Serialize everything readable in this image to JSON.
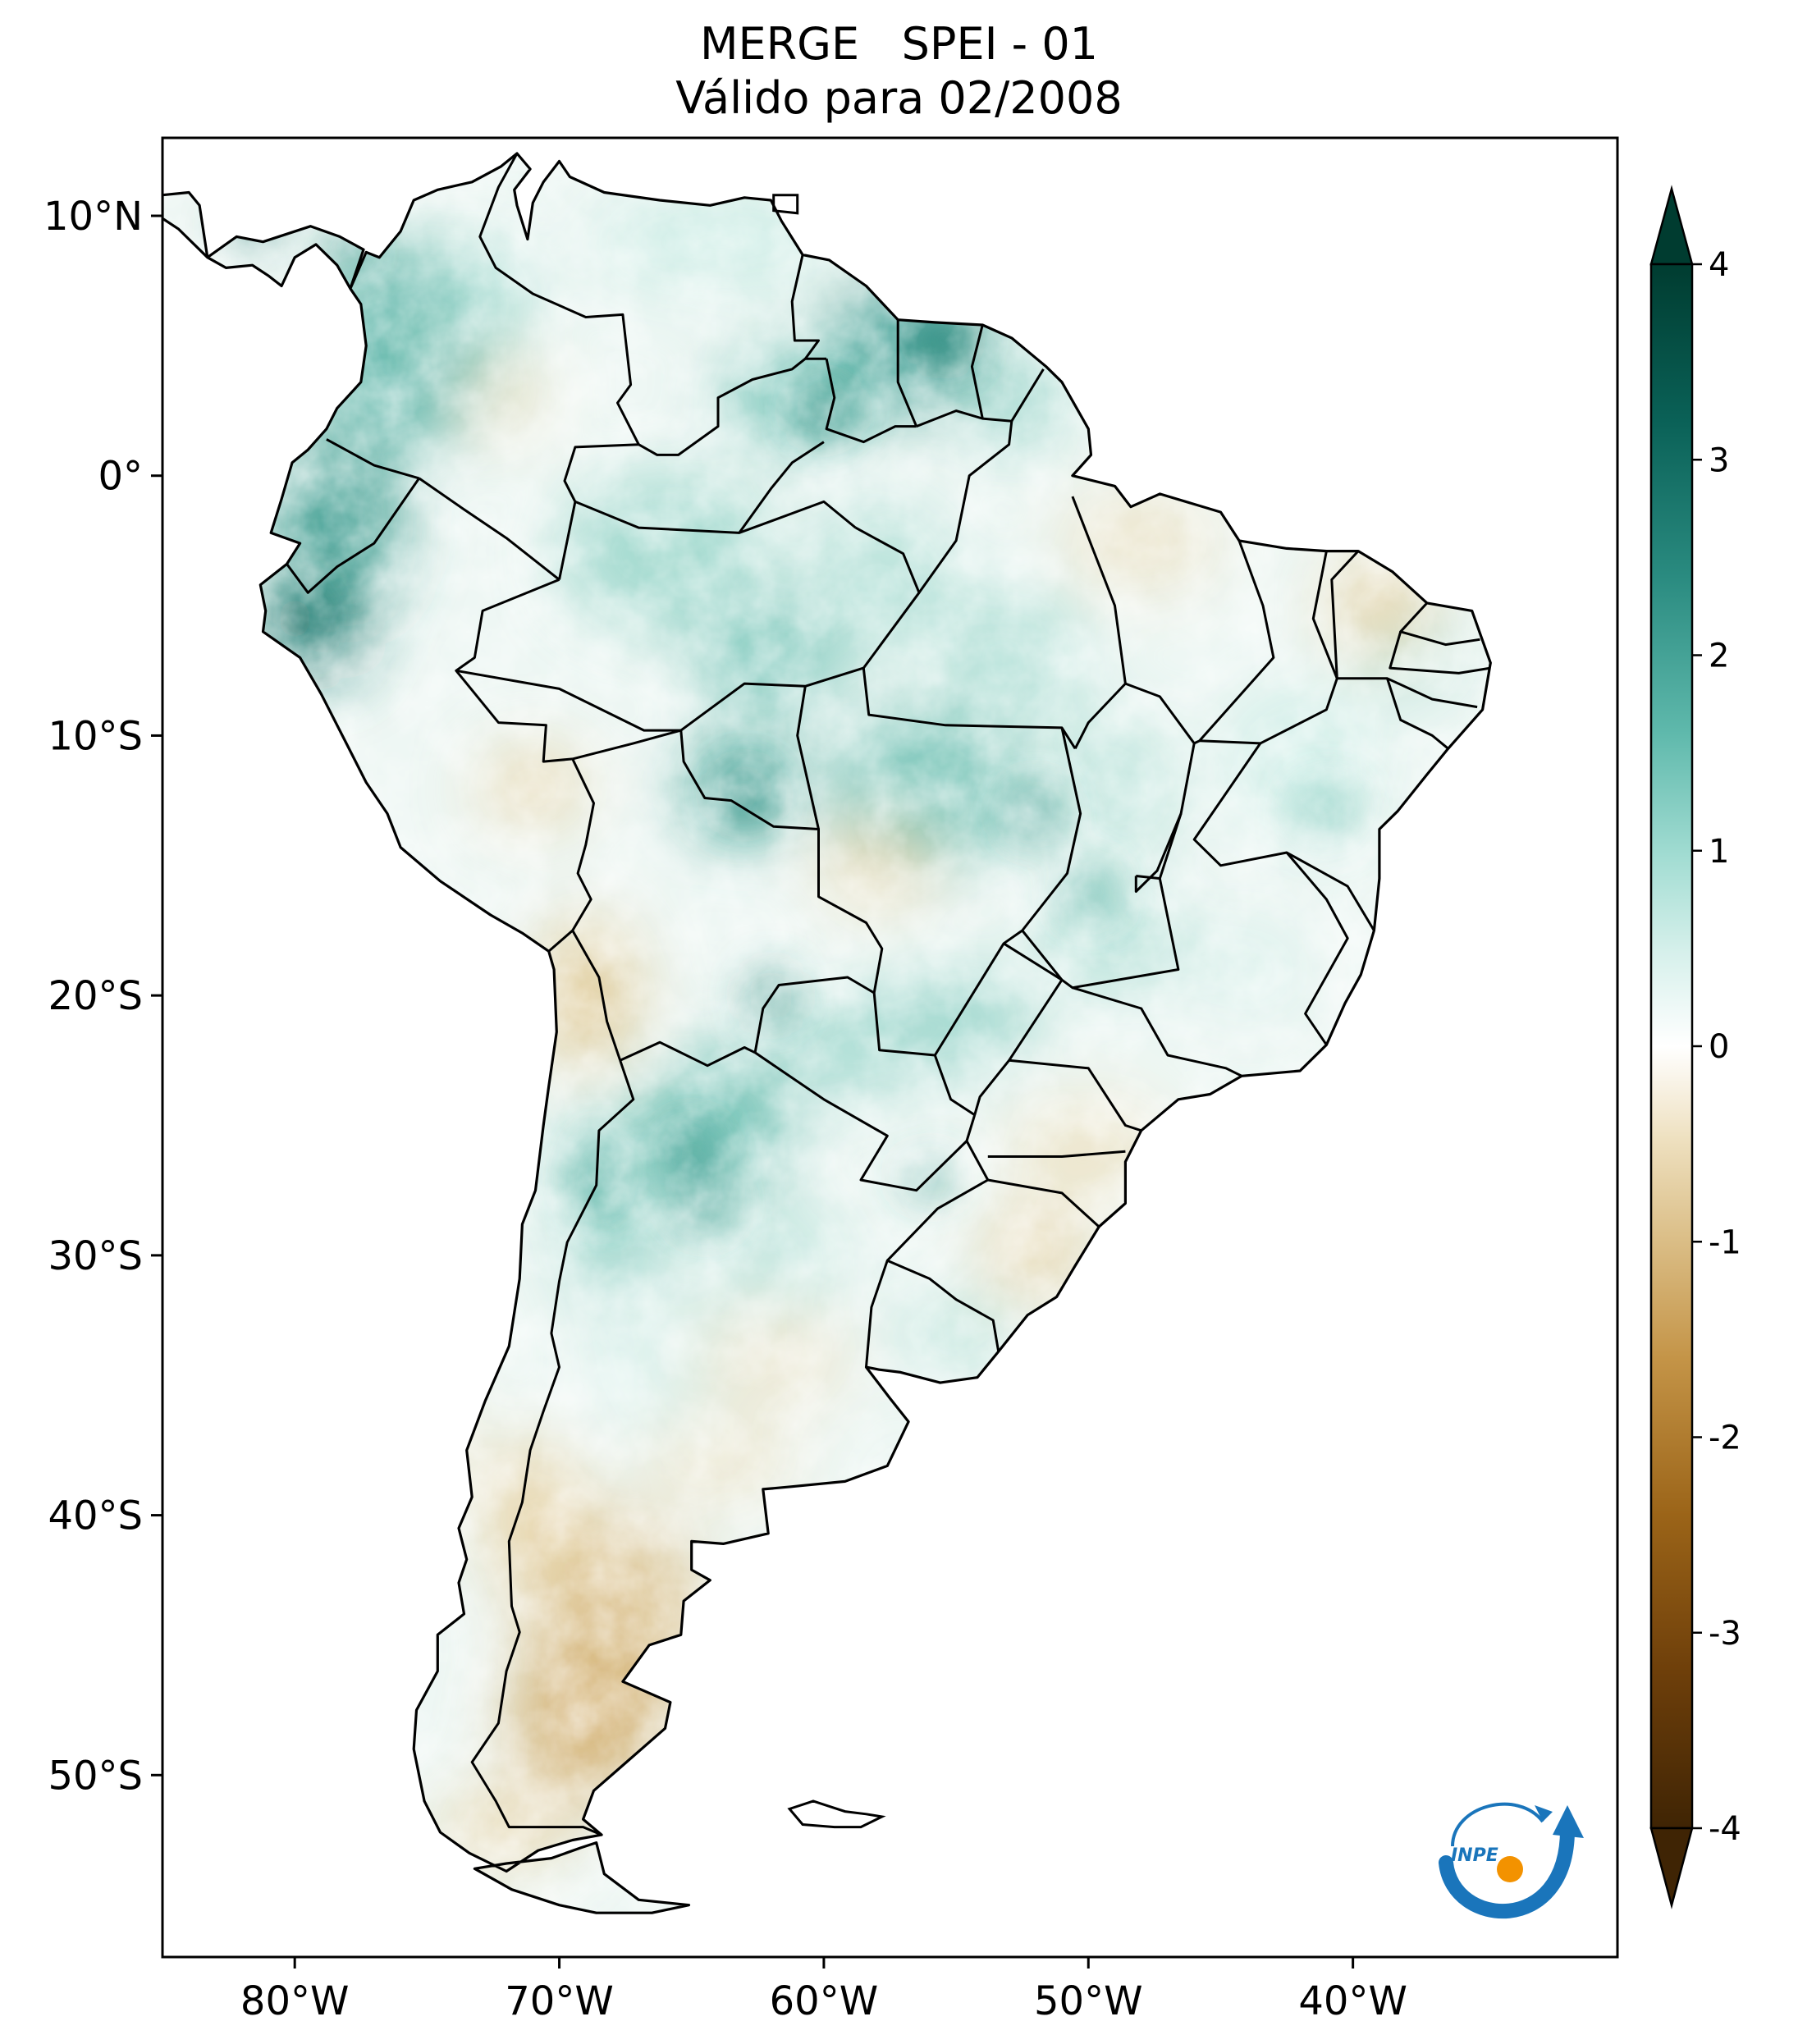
{
  "title": {
    "line1": "MERGE   SPEI - 01",
    "line2": "Válido para 02/2008"
  },
  "map": {
    "lon_range": [
      -85,
      -30
    ],
    "lat_range": [
      -57,
      13
    ],
    "x_ticks": [
      {
        "lon": -80,
        "label": "80°W"
      },
      {
        "lon": -70,
        "label": "70°W"
      },
      {
        "lon": -60,
        "label": "60°W"
      },
      {
        "lon": -50,
        "label": "50°W"
      },
      {
        "lon": -40,
        "label": "40°W"
      }
    ],
    "y_ticks": [
      {
        "lat": 10,
        "label": "10°N"
      },
      {
        "lat": 0,
        "label": "0°"
      },
      {
        "lat": -10,
        "label": "10°S"
      },
      {
        "lat": -20,
        "label": "20°S"
      },
      {
        "lat": -30,
        "label": "30°S"
      },
      {
        "lat": -40,
        "label": "40°S"
      },
      {
        "lat": -50,
        "label": "50°S"
      }
    ],
    "wet_regions": [
      "Colombia",
      "Ecuador",
      "Venezuela",
      "Guyana",
      "Suriname",
      "Rondonia",
      "Mato Grosso",
      "Paraguay",
      "Northern Argentina"
    ],
    "dry_regions": [
      "Patagonia",
      "Southern Chile",
      "Altiplano",
      "Central Brazil patches"
    ]
  },
  "colorbar": {
    "min": -4,
    "max": 4,
    "ticks": [
      {
        "value": 4,
        "label": "4"
      },
      {
        "value": 3,
        "label": "3"
      },
      {
        "value": 2,
        "label": "2"
      },
      {
        "value": 1,
        "label": "1"
      },
      {
        "value": 0,
        "label": "0"
      },
      {
        "value": -1,
        "label": "-1"
      },
      {
        "value": -2,
        "label": "-2"
      },
      {
        "value": -3,
        "label": "-3"
      },
      {
        "value": -4,
        "label": "-4"
      }
    ],
    "colors": [
      "#543005",
      "#8c510a",
      "#bf812d",
      "#dfc27d",
      "#f6e8c3",
      "#ffffff",
      "#c7eae5",
      "#80cdc1",
      "#35978f",
      "#01665e",
      "#003c30"
    ],
    "extend": "both"
  },
  "logo": {
    "text": "INPE",
    "blue": "#1a75bb",
    "orange": "#f39200"
  }
}
